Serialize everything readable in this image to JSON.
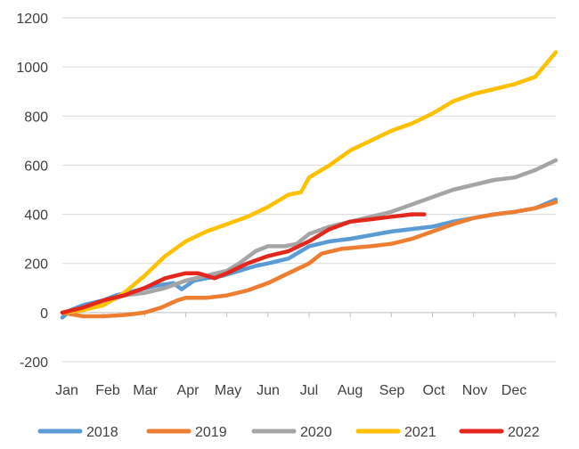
{
  "chart_data": {
    "type": "line",
    "title": "",
    "xlabel": "",
    "ylabel": "",
    "ylim": [
      -200,
      1200
    ],
    "yticks": [
      -200,
      0,
      200,
      400,
      600,
      800,
      1000,
      1200
    ],
    "x_tick_labels": [
      "Jan",
      "Feb",
      "Mar",
      "Apr",
      "May",
      "Jun",
      "Jul",
      "Aug",
      "Sep",
      "Oct",
      "Nov",
      "Dec"
    ],
    "x_unit": "month (0 = Jan 1, 12 = Dec 31)",
    "grid": "horizontal",
    "legend_position": "bottom",
    "series": [
      {
        "name": "2018",
        "color": "#5B9BD5",
        "x": [
          0,
          0.2,
          0.5,
          1,
          1.3,
          1.8,
          2.3,
          2.7,
          2.9,
          3.2,
          3.5,
          3.9,
          4.3,
          4.7,
          5,
          5.5,
          5.8,
          6,
          6.5,
          7,
          7.5,
          8,
          8.5,
          9,
          9.5,
          10,
          10.5,
          11,
          11.5,
          12
        ],
        "y": [
          -20,
          10,
          30,
          50,
          70,
          90,
          110,
          120,
          95,
          130,
          140,
          150,
          170,
          190,
          200,
          220,
          250,
          270,
          290,
          300,
          315,
          330,
          340,
          350,
          370,
          385,
          400,
          410,
          425,
          460
        ]
      },
      {
        "name": "2019",
        "color": "#ED7D31",
        "x": [
          0,
          0.5,
          1,
          1.5,
          2,
          2.4,
          2.8,
          3,
          3.5,
          4,
          4.5,
          5,
          5.5,
          6,
          6.3,
          6.8,
          7.5,
          8,
          8.5,
          9,
          9.5,
          10,
          10.5,
          11,
          11.5,
          12
        ],
        "y": [
          0,
          -15,
          -15,
          -10,
          0,
          20,
          50,
          60,
          60,
          70,
          90,
          120,
          160,
          200,
          240,
          260,
          270,
          280,
          300,
          330,
          360,
          385,
          400,
          410,
          425,
          450
        ]
      },
      {
        "name": "2020",
        "color": "#A5A5A5",
        "x": [
          0,
          0.5,
          1,
          1.5,
          2,
          2.5,
          3,
          3.5,
          4,
          4.3,
          4.7,
          5,
          5.4,
          5.7,
          6,
          6.5,
          7,
          7.5,
          8,
          8.5,
          9,
          9.5,
          10,
          10.5,
          11,
          11.5,
          12
        ],
        "y": [
          0,
          10,
          40,
          70,
          80,
          100,
          130,
          150,
          170,
          200,
          250,
          270,
          270,
          280,
          320,
          350,
          370,
          390,
          410,
          440,
          470,
          500,
          520,
          540,
          550,
          580,
          620
        ]
      },
      {
        "name": "2021",
        "color": "#FFC000",
        "x": [
          0,
          0.5,
          1,
          1.5,
          2,
          2.5,
          3,
          3.5,
          4,
          4.5,
          5,
          5.5,
          5.8,
          6,
          6.5,
          7,
          7.5,
          8,
          8.5,
          9,
          9.5,
          10,
          10.5,
          11,
          11.5,
          12
        ],
        "y": [
          0,
          10,
          30,
          80,
          150,
          230,
          290,
          330,
          360,
          390,
          430,
          480,
          490,
          550,
          600,
          660,
          700,
          740,
          770,
          810,
          860,
          890,
          910,
          930,
          960,
          1060
        ]
      },
      {
        "name": "2022",
        "color": "#E3271C",
        "x": [
          0,
          0.5,
          1,
          1.5,
          2,
          2.5,
          3,
          3.3,
          3.7,
          4,
          4.5,
          5,
          5.5,
          6,
          6.5,
          7,
          7.5,
          8,
          8.5,
          8.8
        ],
        "y": [
          0,
          20,
          50,
          70,
          100,
          140,
          160,
          160,
          140,
          160,
          200,
          230,
          250,
          290,
          340,
          370,
          380,
          390,
          400,
          400
        ]
      }
    ]
  }
}
